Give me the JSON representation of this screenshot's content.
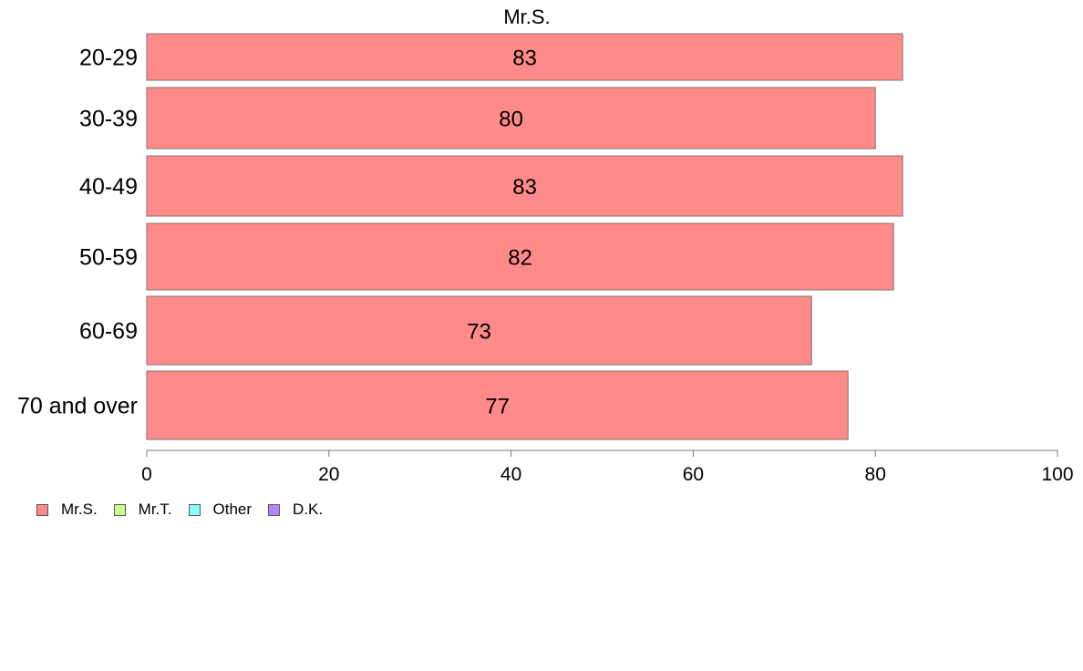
{
  "chart_data": {
    "type": "bar",
    "orientation": "horizontal",
    "title": "Mr.S.",
    "categories": [
      "20-29",
      "30-39",
      "40-49",
      "50-59",
      "60-69",
      "70 and over"
    ],
    "series": [
      {
        "name": "Mr.S.",
        "values": [
          83,
          80,
          83,
          82,
          73,
          77
        ],
        "color": "#ff8a8a"
      }
    ],
    "data_labels": [
      "83",
      "80",
      "83",
      "82",
      "73",
      "77"
    ],
    "xlim": [
      0,
      100
    ],
    "xticks": [
      "0",
      "20",
      "40",
      "60",
      "80",
      "100"
    ],
    "grid": false,
    "legend_position": "bottom-left"
  },
  "legend": [
    {
      "label": "Mr.S.",
      "color": "#ff8a8a"
    },
    {
      "label": "Mr.T.",
      "color": "#ccff88"
    },
    {
      "label": "Other",
      "color": "#88ffff"
    },
    {
      "label": "D.K.",
      "color": "#b388ff"
    }
  ]
}
